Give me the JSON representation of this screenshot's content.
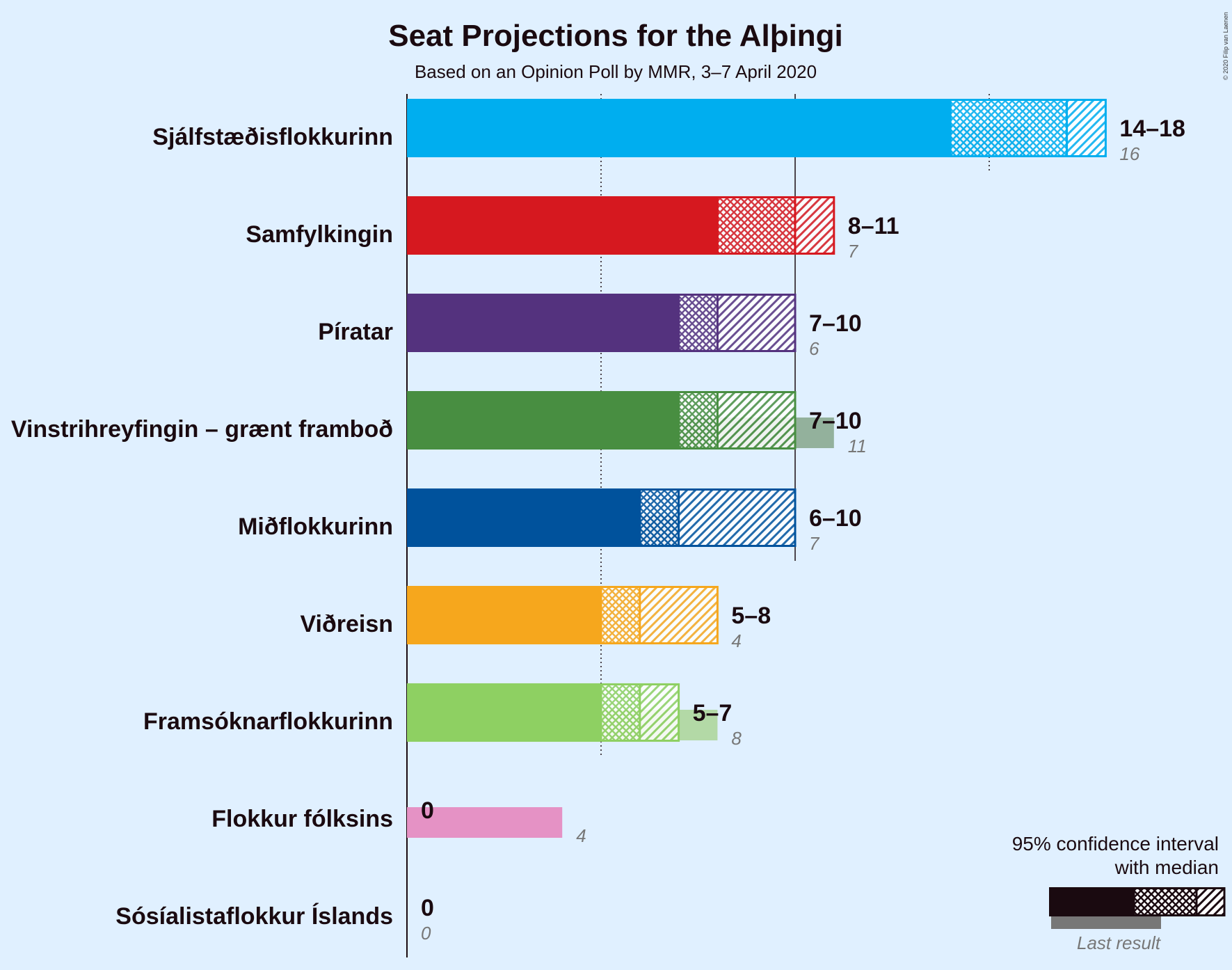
{
  "chart_data": {
    "type": "bar",
    "title": "Seat Projections for the Alþingi",
    "subtitle": "Based on an Opinion Poll by MMR, 3–7 April 2020",
    "copyright": "© 2020 Filip van Laenen",
    "xlim": [
      0,
      18
    ],
    "gridlines": [
      5,
      10,
      15
    ],
    "majority_line": 32,
    "parties": [
      {
        "name": "Sjálfstæðisflokkurinn",
        "low": 14,
        "median": 17,
        "high": 18,
        "range_label": "14–18",
        "last": 16,
        "last_label": "16",
        "color": "#00aeef",
        "last_color": "#6cbde3"
      },
      {
        "name": "Samfylkingin",
        "low": 8,
        "median": 10,
        "high": 11,
        "range_label": "8–11",
        "last": 7,
        "last_label": "7",
        "color": "#d6181f",
        "last_color": "#d07f8a"
      },
      {
        "name": "Píratar",
        "low": 7,
        "median": 8,
        "high": 10,
        "range_label": "7–10",
        "last": 6,
        "last_label": "6",
        "color": "#54327e",
        "last_color": "#9a8fb5"
      },
      {
        "name": "Vinstrihreyfingin – grænt framboð",
        "low": 7,
        "median": 8,
        "high": 10,
        "range_label": "7–10",
        "last": 11,
        "last_label": "11",
        "color": "#488e41",
        "last_color": "#93b19c"
      },
      {
        "name": "Miðflokkurinn",
        "low": 6,
        "median": 7,
        "high": 10,
        "range_label": "6–10",
        "last": 7,
        "last_label": "7",
        "color": "#00529c",
        "last_color": "#779dc0"
      },
      {
        "name": "Viðreisn",
        "low": 5,
        "median": 6,
        "high": 8,
        "range_label": "5–8",
        "last": 4,
        "last_label": "4",
        "color": "#f6a71d",
        "last_color": "#e1c393"
      },
      {
        "name": "Framsóknarflokkurinn",
        "low": 5,
        "median": 6,
        "high": 7,
        "range_label": "5–7",
        "last": 8,
        "last_label": "8",
        "color": "#8ed062",
        "last_color": "#b3d9a6"
      },
      {
        "name": "Flokkur fólksins",
        "low": 0,
        "median": 0,
        "high": 0,
        "range_label": "0",
        "last": 4,
        "last_label": "4",
        "color": "#e592c5",
        "last_color": "#e592c5"
      },
      {
        "name": "Sósíalistaflokkur Íslands",
        "low": 0,
        "median": 0,
        "high": 0,
        "range_label": "0",
        "last": 0,
        "last_label": "0",
        "color": "#d6181f",
        "last_color": "#d07f8a"
      }
    ],
    "legend": {
      "line1": "95% confidence interval",
      "line2": "with median",
      "last_result": "Last result",
      "color": "#1a0a10",
      "last_color": "#777777"
    }
  }
}
